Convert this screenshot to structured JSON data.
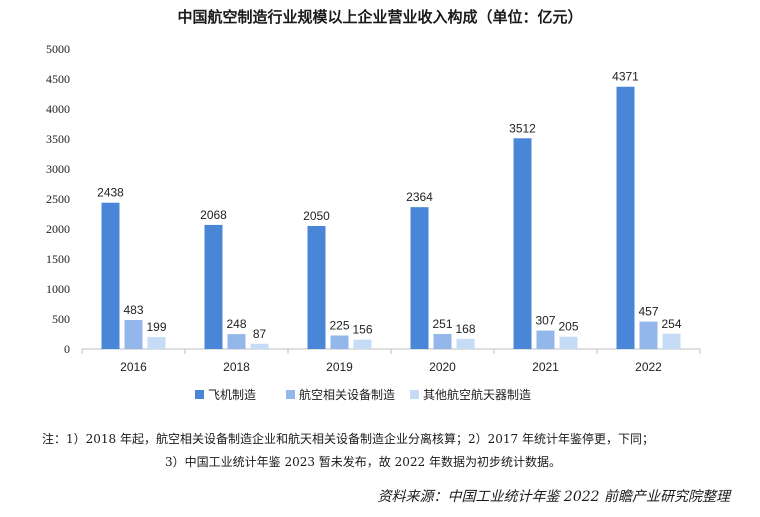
{
  "chart_data": {
    "type": "bar",
    "title": "中国航空制造行业规模以上企业营业收入构成（单位：亿元）",
    "categories": [
      "2016",
      "2018",
      "2019",
      "2020",
      "2021",
      "2022"
    ],
    "series": [
      {
        "name": "飞机制造",
        "values": [
          2438,
          2068,
          2050,
          2364,
          3512,
          4371
        ],
        "color": "#4a86d8"
      },
      {
        "name": "航空相关设备制造",
        "values": [
          483,
          248,
          225,
          251,
          307,
          457
        ],
        "color": "#93b7ea"
      },
      {
        "name": "其他航空航天器制造",
        "values": [
          199,
          87,
          156,
          168,
          205,
          254
        ],
        "color": "#c6dbf6"
      }
    ],
    "ylim": [
      0,
      5000
    ],
    "yticks": [
      0,
      500,
      1000,
      1500,
      2000,
      2500,
      3000,
      3500,
      4000,
      4500,
      5000
    ],
    "grid": false,
    "legend": "bottom"
  },
  "notes": {
    "line1": "注：1）2018 年起，航空相关设备制造企业和航天相关设备制造企业分离核算；2）2017 年统计年鉴停更，下同；",
    "line2": "3）中国工业统计年鉴 2023 暂未发布，故 2022 年数据为初步统计数据。"
  },
  "source": "资料来源：中国工业统计年鉴 2022  前瞻产业研究院整理"
}
